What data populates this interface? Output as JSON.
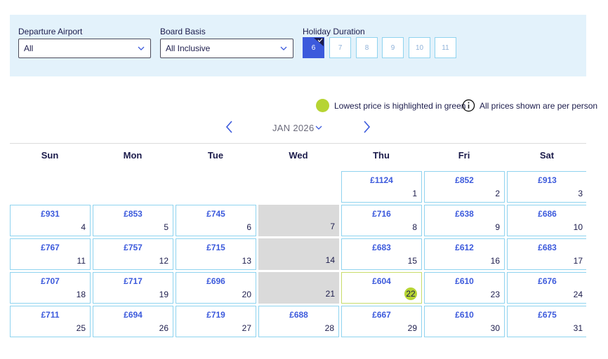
{
  "filters": {
    "departure_label": "Departure Airport",
    "departure_value": "All",
    "board_label": "Board Basis",
    "board_value": "All Inclusive",
    "duration_label": "Holiday Duration",
    "durations": [
      "6",
      "7",
      "8",
      "9",
      "10",
      "11"
    ],
    "selected_duration": "6"
  },
  "legend": {
    "lowest_text": "Lowest price is highlighted in green",
    "per_person_text": "All prices shown are per person"
  },
  "nav": {
    "month": "JAN 2026"
  },
  "weekdays": [
    "Sun",
    "Mon",
    "Tue",
    "Wed",
    "Thu",
    "Fri",
    "Sat"
  ],
  "calendar": {
    "first_weekday": 4,
    "lowest_day": 22,
    "days": [
      {
        "d": "1",
        "p": "£1124"
      },
      {
        "d": "2",
        "p": "£852"
      },
      {
        "d": "3",
        "p": "£913"
      },
      {
        "d": "4",
        "p": "£931"
      },
      {
        "d": "5",
        "p": "£853"
      },
      {
        "d": "6",
        "p": "£745"
      },
      {
        "d": "7",
        "p": ""
      },
      {
        "d": "8",
        "p": "£716"
      },
      {
        "d": "9",
        "p": "£638"
      },
      {
        "d": "10",
        "p": "£686"
      },
      {
        "d": "11",
        "p": "£767"
      },
      {
        "d": "12",
        "p": "£757"
      },
      {
        "d": "13",
        "p": "£715"
      },
      {
        "d": "14",
        "p": ""
      },
      {
        "d": "15",
        "p": "£683"
      },
      {
        "d": "16",
        "p": "£612"
      },
      {
        "d": "17",
        "p": "£683"
      },
      {
        "d": "18",
        "p": "£707"
      },
      {
        "d": "19",
        "p": "£717"
      },
      {
        "d": "20",
        "p": "£696"
      },
      {
        "d": "21",
        "p": ""
      },
      {
        "d": "22",
        "p": "£604"
      },
      {
        "d": "23",
        "p": "£610"
      },
      {
        "d": "24",
        "p": "£676"
      },
      {
        "d": "25",
        "p": "£711"
      },
      {
        "d": "26",
        "p": "£694"
      },
      {
        "d": "27",
        "p": "£719"
      },
      {
        "d": "28",
        "p": "£688"
      },
      {
        "d": "29",
        "p": "£667"
      },
      {
        "d": "30",
        "p": "£610"
      },
      {
        "d": "31",
        "p": "£675"
      }
    ]
  },
  "colors": {
    "accent": "#3c5adc",
    "lowest_green": "#b6d433",
    "cell_border": "#8fd3ef",
    "filter_bg": "#e3f2fb",
    "unavailable": "#dadada"
  }
}
